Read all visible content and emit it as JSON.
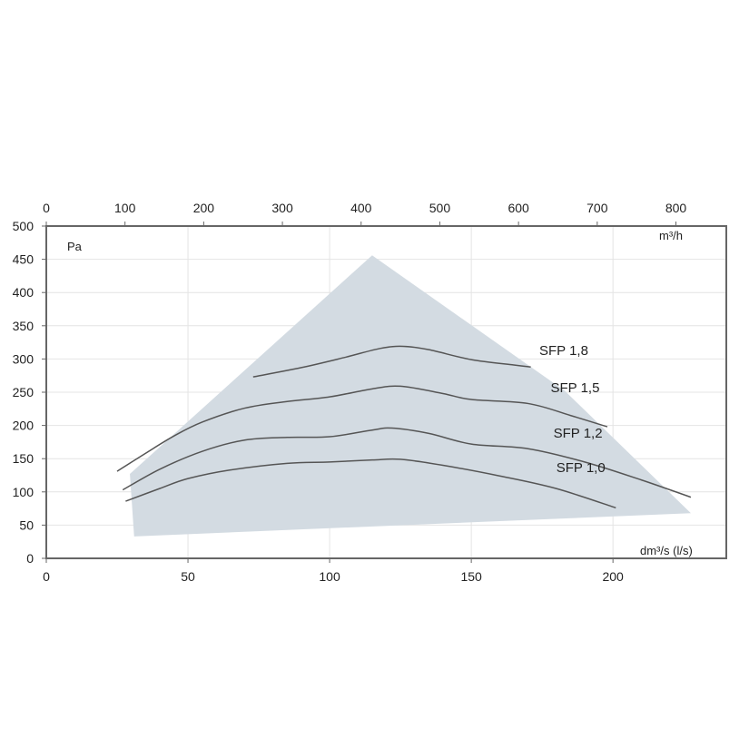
{
  "chart_data": {
    "type": "line",
    "title": "",
    "ylabel": "Pa",
    "xlabel": "dm³/s (l/s)",
    "x2label": "m³/h",
    "xlim": [
      0,
      240
    ],
    "ylim": [
      0,
      500
    ],
    "x2lim": [
      0,
      864
    ],
    "grid": true,
    "x_ticks": [
      0,
      50,
      100,
      150,
      200
    ],
    "x2_ticks": [
      0,
      100,
      200,
      300,
      400,
      500,
      600,
      700,
      800
    ],
    "y_ticks": [
      0,
      50,
      100,
      150,
      200,
      250,
      300,
      350,
      400,
      450,
      500
    ],
    "colors": {
      "area_fill": "#d3dbe2",
      "curve": "#555555",
      "curve_extension": "#111111",
      "frame": "#666666",
      "grid": "#e4e4e4",
      "text": "#222222"
    },
    "operating_area": [
      [
        29.5,
        127
      ],
      [
        115,
        456
      ],
      [
        183,
        252
      ],
      [
        227.5,
        68
      ],
      [
        31,
        33
      ]
    ],
    "series": [
      {
        "name": "SFP 1,8",
        "label_at": [
          174,
          306
        ],
        "points": [
          [
            73,
            273
          ],
          [
            90,
            287
          ],
          [
            105,
            302
          ],
          [
            118,
            316
          ],
          [
            126,
            319
          ],
          [
            135,
            314
          ],
          [
            150,
            299
          ],
          [
            165,
            291
          ],
          [
            171,
            288
          ]
        ]
      },
      {
        "name": "SFP 1,5",
        "label_at": [
          178,
          250
        ],
        "points": [
          [
            25,
            131
          ],
          [
            35,
            158
          ],
          [
            45,
            184
          ],
          [
            55,
            205
          ],
          [
            70,
            226
          ],
          [
            85,
            236
          ],
          [
            100,
            243
          ],
          [
            115,
            255
          ],
          [
            125,
            259
          ],
          [
            140,
            248
          ],
          [
            150,
            239
          ],
          [
            170,
            233
          ],
          [
            185,
            215
          ],
          [
            198,
            198
          ]
        ]
      },
      {
        "name": "SFP 1,2",
        "label_at": [
          179,
          182
        ],
        "points": [
          [
            27,
            103
          ],
          [
            40,
            134
          ],
          [
            55,
            161
          ],
          [
            70,
            178
          ],
          [
            85,
            182
          ],
          [
            100,
            183
          ],
          [
            115,
            193
          ],
          [
            122,
            196
          ],
          [
            135,
            188
          ],
          [
            150,
            172
          ],
          [
            170,
            165
          ],
          [
            190,
            145
          ],
          [
            210,
            118
          ],
          [
            227.5,
            92
          ]
        ]
      },
      {
        "name": "SFP 1,0",
        "label_at": [
          180,
          130
        ],
        "points": [
          [
            28,
            86
          ],
          [
            40,
            105
          ],
          [
            50,
            120
          ],
          [
            65,
            133
          ],
          [
            85,
            143
          ],
          [
            100,
            145
          ],
          [
            115,
            148
          ],
          [
            125,
            149
          ],
          [
            140,
            140
          ],
          [
            160,
            124
          ],
          [
            180,
            105
          ],
          [
            201,
            76
          ]
        ]
      }
    ]
  }
}
